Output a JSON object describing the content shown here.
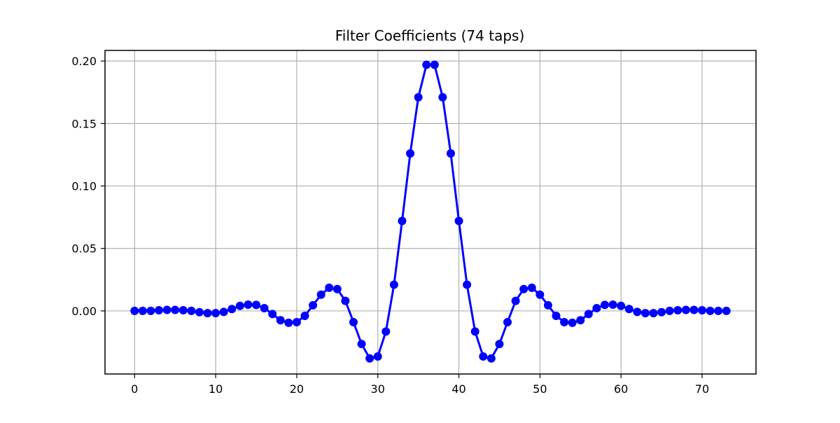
{
  "chart_data": {
    "type": "line",
    "title": "Filter Coefficients (74 taps)",
    "xlabel": "",
    "ylabel": "",
    "xlim": [
      -3.65,
      76.65
    ],
    "ylim": [
      -0.0505,
      0.2085
    ],
    "xticks": [
      0,
      10,
      20,
      30,
      40,
      50,
      60,
      70
    ],
    "xtick_labels": [
      "0",
      "10",
      "20",
      "30",
      "40",
      "50",
      "60",
      "70"
    ],
    "yticks": [
      0.0,
      0.05,
      0.1,
      0.15,
      0.2
    ],
    "ytick_labels": [
      "0.00",
      "0.05",
      "0.10",
      "0.15",
      "0.20"
    ],
    "grid": true,
    "series": [
      {
        "color": "#0000ff",
        "marker": "circle",
        "x": [
          0,
          1,
          2,
          3,
          4,
          5,
          6,
          7,
          8,
          9,
          10,
          11,
          12,
          13,
          14,
          15,
          16,
          17,
          18,
          19,
          20,
          21,
          22,
          23,
          24,
          25,
          26,
          27,
          28,
          29,
          30,
          31,
          32,
          33,
          34,
          35,
          36,
          37,
          38,
          39,
          40,
          41,
          42,
          43,
          44,
          45,
          46,
          47,
          48,
          49,
          50,
          51,
          52,
          53,
          54,
          55,
          56,
          57,
          58,
          59,
          60,
          61,
          62,
          63,
          64,
          65,
          66,
          67,
          68,
          69,
          70,
          71,
          72,
          73
        ],
        "y": [
          0.0,
          0.0,
          0.0,
          0.0005,
          0.0008,
          0.0008,
          0.0005,
          0.0,
          -0.001,
          -0.0018,
          -0.0018,
          -0.0008,
          0.0015,
          0.004,
          0.005,
          0.0048,
          0.0022,
          -0.0025,
          -0.0075,
          -0.0095,
          -0.009,
          -0.004,
          0.0045,
          0.013,
          0.0185,
          0.0175,
          0.008,
          -0.009,
          -0.0265,
          -0.038,
          -0.0365,
          -0.0165,
          0.021,
          0.072,
          0.126,
          0.171,
          0.197,
          0.197,
          0.171,
          0.126,
          0.072,
          0.021,
          -0.0165,
          -0.0365,
          -0.038,
          -0.0265,
          -0.009,
          0.008,
          0.0175,
          0.0185,
          0.013,
          0.0045,
          -0.004,
          -0.009,
          -0.0095,
          -0.0075,
          -0.0025,
          0.0022,
          0.0048,
          0.005,
          0.004,
          0.0015,
          -0.0008,
          -0.0018,
          -0.0018,
          -0.001,
          0.0,
          0.0005,
          0.0008,
          0.0008,
          0.0005,
          0.0,
          0.0,
          0.0
        ]
      }
    ]
  }
}
